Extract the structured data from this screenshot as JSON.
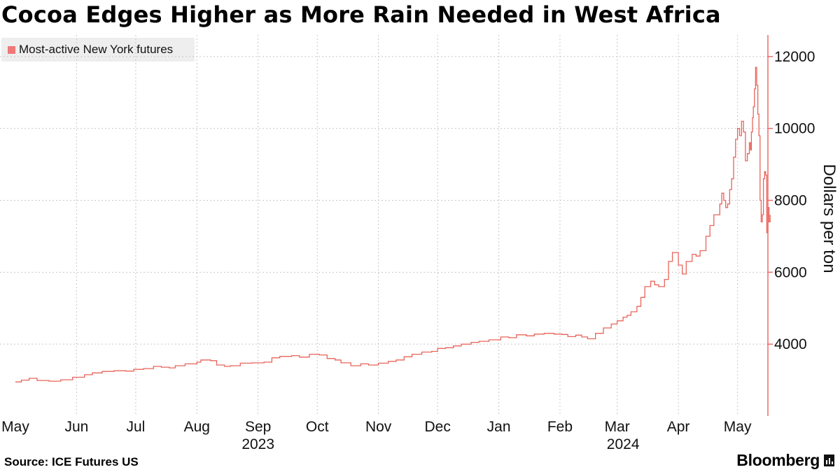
{
  "title": "Cocoa Edges Higher as More Rain Needed in West Africa",
  "legend_label": "Most-active New York futures",
  "source": "Source: ICE Futures US",
  "brand": "Bloomberg",
  "colors": {
    "series": "#e8645a",
    "axis": "#f06a6a",
    "grid": "#c8c8c8",
    "legend_bg": "#eeeeee"
  },
  "chart_data": {
    "type": "line",
    "ylabel": "Dollars per ton",
    "ylim": [
      2000,
      12600
    ],
    "y_ticks": [
      4000,
      6000,
      8000,
      10000,
      12000
    ],
    "x_range": [
      "2023-05-01",
      "2024-05-10"
    ],
    "x_ticks": [
      {
        "date": "2023-05-01",
        "label": "May"
      },
      {
        "date": "2023-06-01",
        "label": "Jun"
      },
      {
        "date": "2023-07-01",
        "label": "Jul"
      },
      {
        "date": "2023-08-01",
        "label": "Aug"
      },
      {
        "date": "2023-09-01",
        "label": "Sep"
      },
      {
        "date": "2023-10-01",
        "label": "Oct"
      },
      {
        "date": "2023-11-01",
        "label": "Nov"
      },
      {
        "date": "2023-12-01",
        "label": "Dec"
      },
      {
        "date": "2024-01-01",
        "label": "Jan"
      },
      {
        "date": "2024-02-01",
        "label": "Feb"
      },
      {
        "date": "2024-03-01",
        "label": "Mar"
      },
      {
        "date": "2024-04-01",
        "label": "Apr"
      },
      {
        "date": "2024-05-01",
        "label": "May"
      }
    ],
    "year_labels": [
      {
        "date": "2023-09-01",
        "label": "2023"
      },
      {
        "date": "2024-03-04",
        "label": "2024"
      }
    ],
    "grid": true,
    "legend_position": "top-left",
    "series": [
      {
        "name": "Most-active New York futures",
        "points": [
          [
            "2023-05-01",
            2950
          ],
          [
            "2023-05-04",
            3000
          ],
          [
            "2023-05-08",
            3050
          ],
          [
            "2023-05-12",
            2990
          ],
          [
            "2023-05-18",
            2970
          ],
          [
            "2023-05-24",
            3010
          ],
          [
            "2023-05-30",
            3080
          ],
          [
            "2023-06-05",
            3150
          ],
          [
            "2023-06-09",
            3200
          ],
          [
            "2023-06-14",
            3240
          ],
          [
            "2023-06-20",
            3260
          ],
          [
            "2023-06-26",
            3250
          ],
          [
            "2023-06-30",
            3300
          ],
          [
            "2023-07-05",
            3320
          ],
          [
            "2023-07-10",
            3380
          ],
          [
            "2023-07-14",
            3360
          ],
          [
            "2023-07-18",
            3340
          ],
          [
            "2023-07-21",
            3400
          ],
          [
            "2023-07-26",
            3450
          ],
          [
            "2023-08-01",
            3500
          ],
          [
            "2023-08-03",
            3560
          ],
          [
            "2023-08-08",
            3540
          ],
          [
            "2023-08-11",
            3420
          ],
          [
            "2023-08-15",
            3380
          ],
          [
            "2023-08-18",
            3400
          ],
          [
            "2023-08-23",
            3470
          ],
          [
            "2023-08-29",
            3480
          ],
          [
            "2023-09-04",
            3500
          ],
          [
            "2023-09-08",
            3620
          ],
          [
            "2023-09-12",
            3660
          ],
          [
            "2023-09-18",
            3680
          ],
          [
            "2023-09-22",
            3640
          ],
          [
            "2023-09-27",
            3720
          ],
          [
            "2023-10-02",
            3700
          ],
          [
            "2023-10-06",
            3600
          ],
          [
            "2023-10-10",
            3560
          ],
          [
            "2023-10-13",
            3480
          ],
          [
            "2023-10-18",
            3400
          ],
          [
            "2023-10-23",
            3450
          ],
          [
            "2023-10-27",
            3420
          ],
          [
            "2023-11-01",
            3470
          ],
          [
            "2023-11-06",
            3520
          ],
          [
            "2023-11-10",
            3560
          ],
          [
            "2023-11-14",
            3650
          ],
          [
            "2023-11-18",
            3720
          ],
          [
            "2023-11-23",
            3780
          ],
          [
            "2023-11-28",
            3800
          ],
          [
            "2023-12-01",
            3880
          ],
          [
            "2023-12-05",
            3900
          ],
          [
            "2023-12-09",
            3950
          ],
          [
            "2023-12-13",
            4000
          ],
          [
            "2023-12-18",
            4050
          ],
          [
            "2023-12-22",
            4080
          ],
          [
            "2023-12-27",
            4120
          ],
          [
            "2024-01-02",
            4200
          ],
          [
            "2024-01-06",
            4180
          ],
          [
            "2024-01-10",
            4260
          ],
          [
            "2024-01-15",
            4230
          ],
          [
            "2024-01-19",
            4280
          ],
          [
            "2024-01-24",
            4300
          ],
          [
            "2024-01-29",
            4280
          ],
          [
            "2024-02-02",
            4270
          ],
          [
            "2024-02-05",
            4210
          ],
          [
            "2024-02-09",
            4250
          ],
          [
            "2024-02-12",
            4200
          ],
          [
            "2024-02-15",
            4150
          ],
          [
            "2024-02-19",
            4300
          ],
          [
            "2024-02-23",
            4450
          ],
          [
            "2024-02-27",
            4560
          ],
          [
            "2024-03-01",
            4650
          ],
          [
            "2024-03-04",
            4750
          ],
          [
            "2024-03-06",
            4800
          ],
          [
            "2024-03-08",
            4900
          ],
          [
            "2024-03-11",
            5050
          ],
          [
            "2024-03-13",
            5300
          ],
          [
            "2024-03-15",
            5600
          ],
          [
            "2024-03-18",
            5750
          ],
          [
            "2024-03-20",
            5650
          ],
          [
            "2024-03-22",
            5600
          ],
          [
            "2024-03-25",
            5800
          ],
          [
            "2024-03-27",
            6300
          ],
          [
            "2024-03-29",
            6550
          ],
          [
            "2024-04-01",
            6200
          ],
          [
            "2024-04-03",
            5950
          ],
          [
            "2024-04-05",
            6300
          ],
          [
            "2024-04-08",
            6500
          ],
          [
            "2024-04-10",
            6450
          ],
          [
            "2024-04-12",
            6600
          ],
          [
            "2024-04-15",
            7000
          ],
          [
            "2024-04-17",
            7300
          ],
          [
            "2024-04-19",
            7600
          ],
          [
            "2024-04-22",
            7900
          ],
          [
            "2024-04-23",
            8200
          ],
          [
            "2024-04-24",
            8000
          ],
          [
            "2024-04-25",
            7800
          ],
          [
            "2024-04-26",
            7900
          ],
          [
            "2024-04-27",
            8300
          ],
          [
            "2024-04-28",
            8600
          ],
          [
            "2024-04-29",
            9200
          ],
          [
            "2024-04-30",
            9700
          ],
          [
            "2024-05-01",
            10000
          ],
          [
            "2024-05-02",
            9800
          ],
          [
            "2024-05-03",
            10200
          ],
          [
            "2024-05-04",
            9900
          ],
          [
            "2024-05-05",
            9100
          ],
          [
            "2024-05-06",
            9300
          ],
          [
            "2024-05-07",
            9600
          ],
          [
            "2024-05-07",
            9400
          ],
          [
            "2024-05-08",
            9900
          ],
          [
            "2024-05-08",
            10300
          ],
          [
            "2024-05-09",
            10600
          ],
          [
            "2024-05-09",
            11100
          ],
          [
            "2024-05-09",
            11700
          ],
          [
            "2024-05-09",
            11200
          ],
          [
            "2024-05-10",
            10400
          ],
          [
            "2024-05-10",
            9800
          ],
          [
            "2024-05-10",
            8000
          ],
          [
            "2024-05-10",
            7400
          ],
          [
            "2024-05-10",
            7600
          ],
          [
            "2024-05-10",
            8600
          ],
          [
            "2024-05-10",
            8800
          ],
          [
            "2024-05-10",
            8700
          ],
          [
            "2024-05-10",
            7100
          ],
          [
            "2024-05-10",
            7800
          ],
          [
            "2024-05-10",
            7400
          ],
          [
            "2024-05-10",
            7600
          ]
        ]
      }
    ]
  }
}
